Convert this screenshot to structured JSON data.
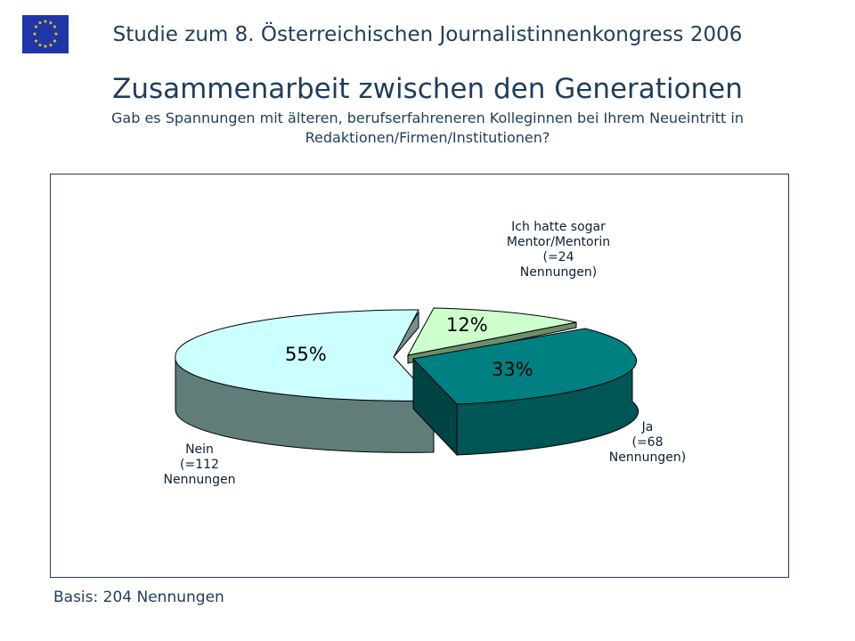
{
  "header": {
    "study_line": "Studie zum 8. Österreichischen Journalistinnenkongress  2006",
    "logo": "eu-flag-icon"
  },
  "title": "Zusammenarbeit zwischen den Generationen",
  "subtitle": "Gab es Spannungen mit älteren, berufserfahreneren Kolleginnen bei Ihrem Neueintritt in Redaktionen/Firmen/Institutionen?",
  "footer": {
    "basis": "Basis: 204 Nennungen"
  },
  "colors": {
    "nein": "#ccffff",
    "ja": "#008080",
    "mentor": "#ccffcc",
    "text": "#1f3d5c"
  },
  "chart_data": {
    "type": "pie",
    "title": "",
    "slices": [
      {
        "label": "Nein",
        "callout": [
          "Nein",
          "(=112",
          "Nennungen"
        ],
        "percent_label": "55%",
        "value": 112,
        "percent": 55
      },
      {
        "label": "Ja",
        "callout": [
          "Ja",
          "(=68",
          "Nennungen)"
        ],
        "percent_label": "33%",
        "value": 68,
        "percent": 33
      },
      {
        "label": "Ich hatte sogar Mentor/Mentorin",
        "callout": [
          "Ich hatte sogar",
          "Mentor/Mentorin",
          "(=24",
          "Nennungen)"
        ],
        "percent_label": "12%",
        "value": 24,
        "percent": 12
      }
    ],
    "total": 204,
    "style": "3d-exploded"
  }
}
